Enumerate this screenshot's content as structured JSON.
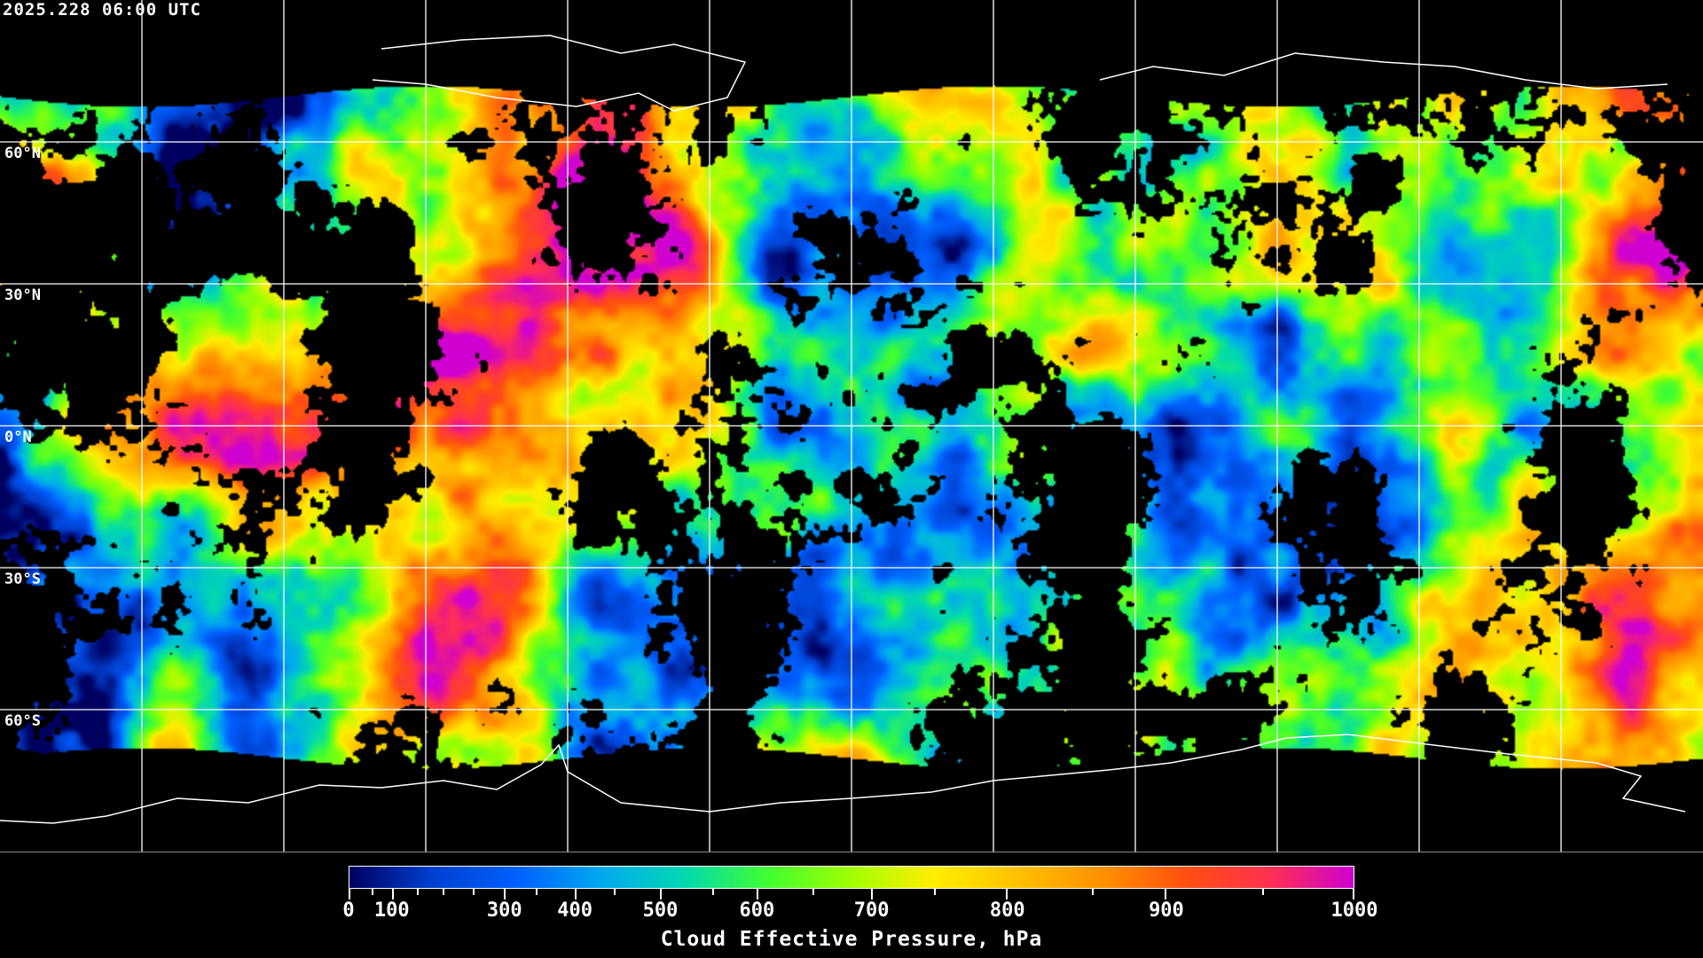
{
  "header": {
    "timestamp": "2025.228 06:00 UTC"
  },
  "map": {
    "projection": "equirectangular",
    "lat_labels": [
      "60°N",
      "30°N",
      "0°N",
      "30°S",
      "60°S"
    ],
    "gridlines": true,
    "coastline_color": "#ffffff",
    "no_data_color": "#000000"
  },
  "colorbar": {
    "title": "Cloud Effective Pressure, hPa",
    "range": [
      0,
      1000
    ],
    "tick_labels": [
      "0",
      "100",
      "300",
      "400",
      "500",
      "600",
      "700",
      "800",
      "900",
      "1000"
    ],
    "colors": [
      "#000060",
      "#0040d0",
      "#0060ff",
      "#00a8f0",
      "#00d8b0",
      "#40ff30",
      "#a0ff00",
      "#ffee00",
      "#ffc000",
      "#ff9000",
      "#ff5010",
      "#ff3050",
      "#d000d0"
    ]
  }
}
